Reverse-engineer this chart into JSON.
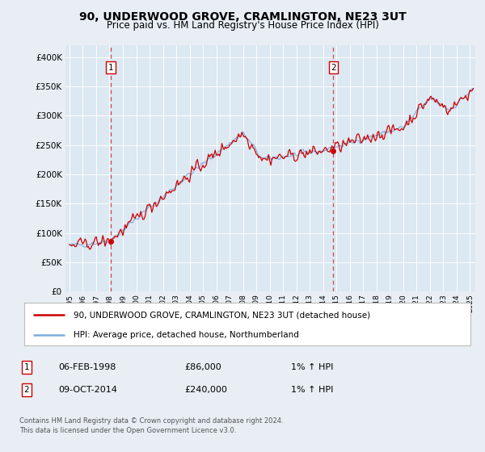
{
  "title": "90, UNDERWOOD GROVE, CRAMLINGTON, NE23 3UT",
  "subtitle": "Price paid vs. HM Land Registry's House Price Index (HPI)",
  "legend_line1": "90, UNDERWOOD GROVE, CRAMLINGTON, NE23 3UT (detached house)",
  "legend_line2": "HPI: Average price, detached house, Northumberland",
  "annotation1": {
    "num": "1",
    "date": "06-FEB-1998",
    "price": "£86,000",
    "hpi": "1% ↑ HPI",
    "x_year": 1998.09
  },
  "annotation2": {
    "num": "2",
    "date": "09-OCT-2014",
    "price": "£240,000",
    "hpi": "1% ↑ HPI",
    "x_year": 2014.77
  },
  "footnote1": "Contains HM Land Registry data © Crown copyright and database right 2024.",
  "footnote2": "This data is licensed under the Open Government Licence v3.0.",
  "property_color": "#cc0000",
  "hpi_color": "#7aacdc",
  "background_color": "#e8eef4",
  "plot_bg_color": "#dce8f2",
  "grid_color": "#ffffff",
  "ylim": [
    0,
    420000
  ],
  "xlim": [
    1994.7,
    2025.4
  ],
  "yticks": [
    0,
    50000,
    100000,
    150000,
    200000,
    250000,
    300000,
    350000,
    400000
  ],
  "xticks": [
    1995,
    1996,
    1997,
    1998,
    1999,
    2000,
    2001,
    2002,
    2003,
    2004,
    2005,
    2006,
    2007,
    2008,
    2009,
    2010,
    2011,
    2012,
    2013,
    2014,
    2015,
    2016,
    2017,
    2018,
    2019,
    2020,
    2021,
    2022,
    2023,
    2024,
    2025
  ]
}
